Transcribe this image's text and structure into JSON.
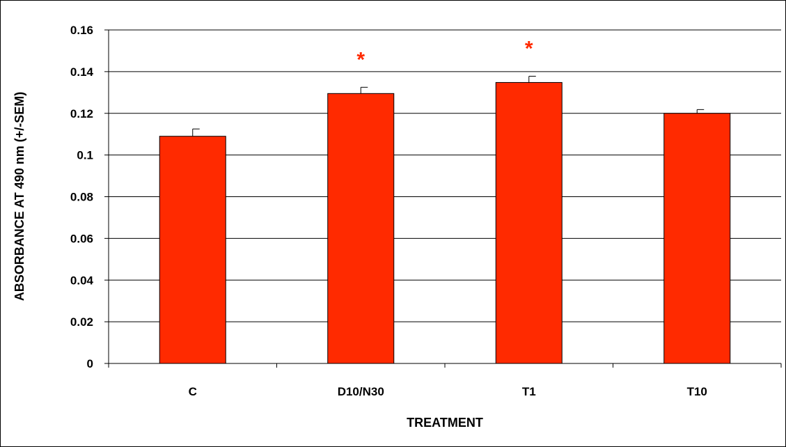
{
  "chart_data": {
    "type": "bar",
    "title": "",
    "xlabel": "TREATMENT",
    "ylabel": "ABSORBANCE AT 490 nm (+/-SEM)",
    "categories": [
      "C",
      "D10/N30",
      "T1",
      "T10"
    ],
    "values": [
      0.109,
      0.1295,
      0.1348,
      0.12
    ],
    "errors": [
      0.0035,
      0.003,
      0.003,
      0.0018
    ],
    "significance": [
      "",
      "*",
      "*",
      ""
    ],
    "ylim": [
      0,
      0.16
    ],
    "yticks": [
      0,
      0.02,
      0.04,
      0.06,
      0.08,
      0.1,
      0.12,
      0.14,
      0.16
    ],
    "ytick_labels": [
      "0",
      "0.02",
      "0.04",
      "0.06",
      "0.08",
      "0.1",
      "0.12",
      "0.14",
      "0.16"
    ],
    "grid": true,
    "legend": "none",
    "colors": {
      "bar": "#ff2a00",
      "bar_edge": "#000000",
      "significance": "#ff2a00"
    }
  }
}
